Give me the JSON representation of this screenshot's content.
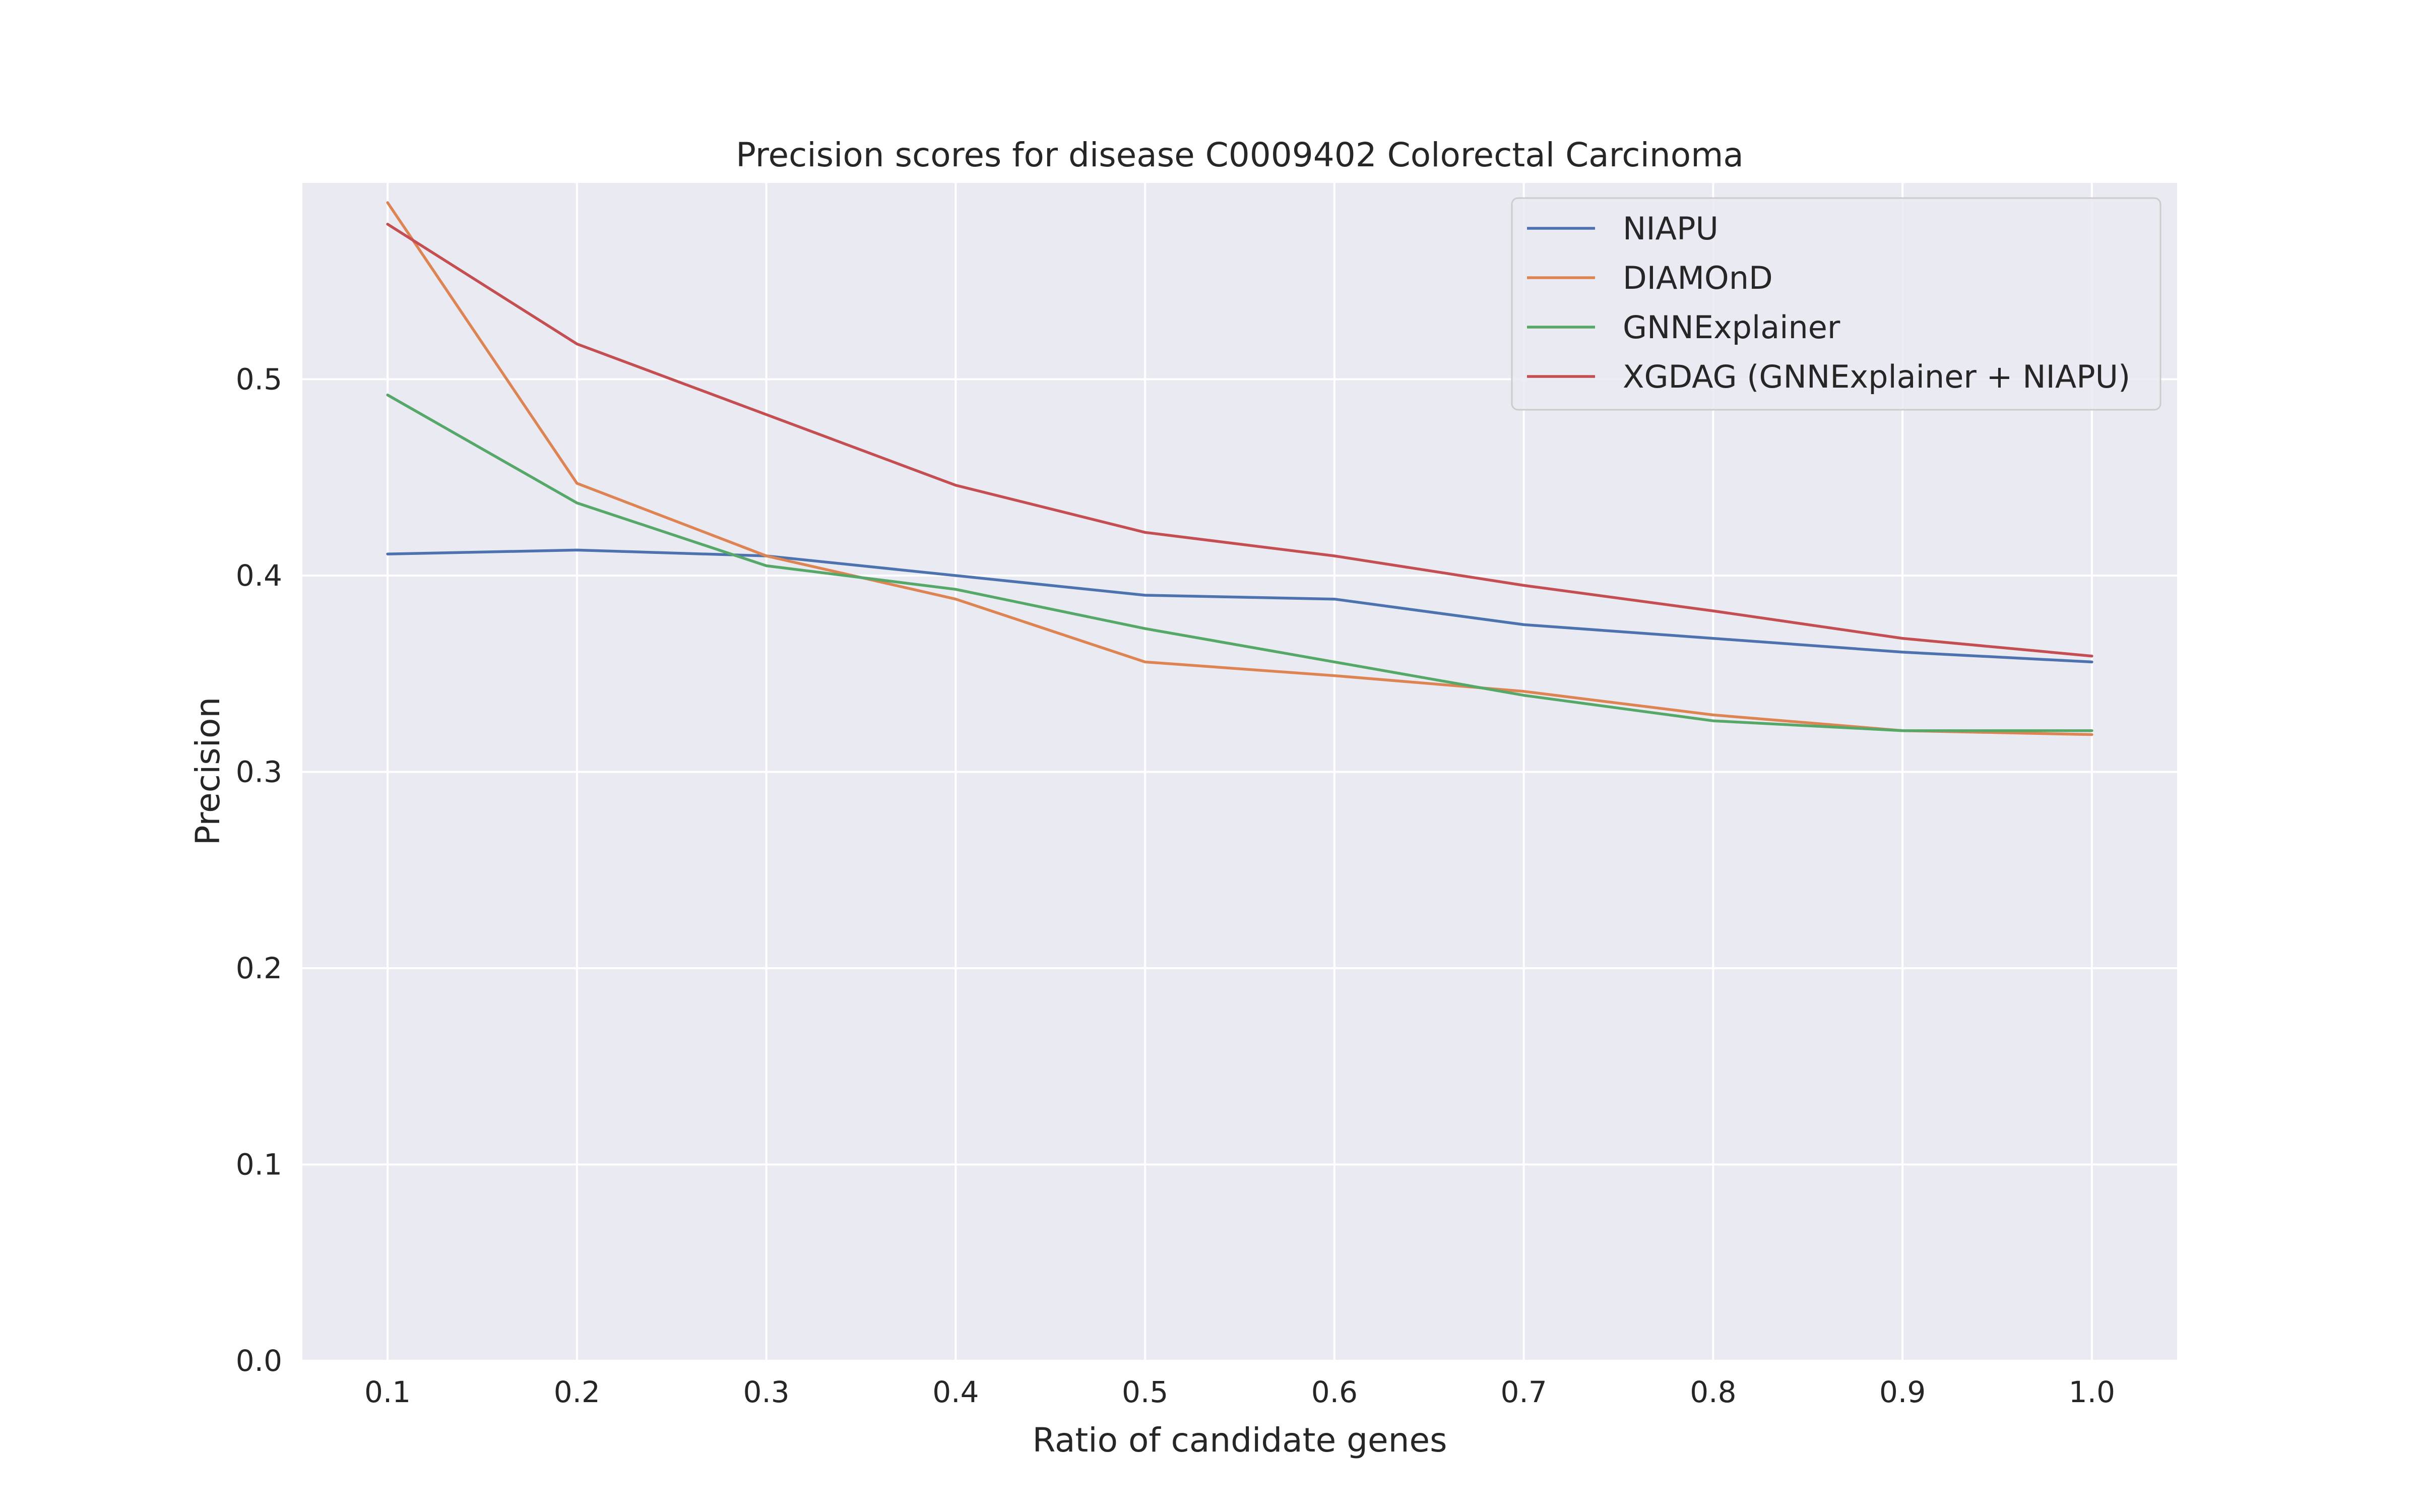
{
  "chart_data": {
    "type": "line",
    "title": "Precision scores for disease C0009402 Colorectal Carcinoma",
    "xlabel": "Ratio of candidate genes",
    "ylabel": "Precision",
    "x": [
      0.1,
      0.2,
      0.3,
      0.4,
      0.5,
      0.6,
      0.7,
      0.8,
      0.9,
      1.0
    ],
    "xticks": [
      "0.1",
      "0.2",
      "0.3",
      "0.4",
      "0.5",
      "0.6",
      "0.7",
      "0.8",
      "0.9",
      "1.0"
    ],
    "yticks": [
      "0.0",
      "0.1",
      "0.2",
      "0.3",
      "0.4",
      "0.5"
    ],
    "xlim": [
      0.055,
      1.045
    ],
    "ylim": [
      0.0,
      0.6
    ],
    "grid": true,
    "legend_position": "top-right",
    "series": [
      {
        "name": "NIAPU",
        "color": "#4c72b0",
        "values": [
          0.411,
          0.413,
          0.41,
          0.4,
          0.39,
          0.388,
          0.375,
          0.368,
          0.361,
          0.356
        ]
      },
      {
        "name": "DIAMOnD",
        "color": "#dd8452",
        "values": [
          0.59,
          0.447,
          0.41,
          0.388,
          0.356,
          0.349,
          0.341,
          0.329,
          0.321,
          0.319
        ]
      },
      {
        "name": "GNNExplainer",
        "color": "#55a868",
        "values": [
          0.492,
          0.437,
          0.405,
          0.393,
          0.373,
          0.356,
          0.339,
          0.326,
          0.321,
          0.321
        ]
      },
      {
        "name": "XGDAG (GNNExplainer + NIAPU)",
        "color": "#c44e52",
        "values": [
          0.579,
          0.518,
          0.482,
          0.446,
          0.422,
          0.41,
          0.395,
          0.382,
          0.368,
          0.359
        ]
      }
    ]
  }
}
